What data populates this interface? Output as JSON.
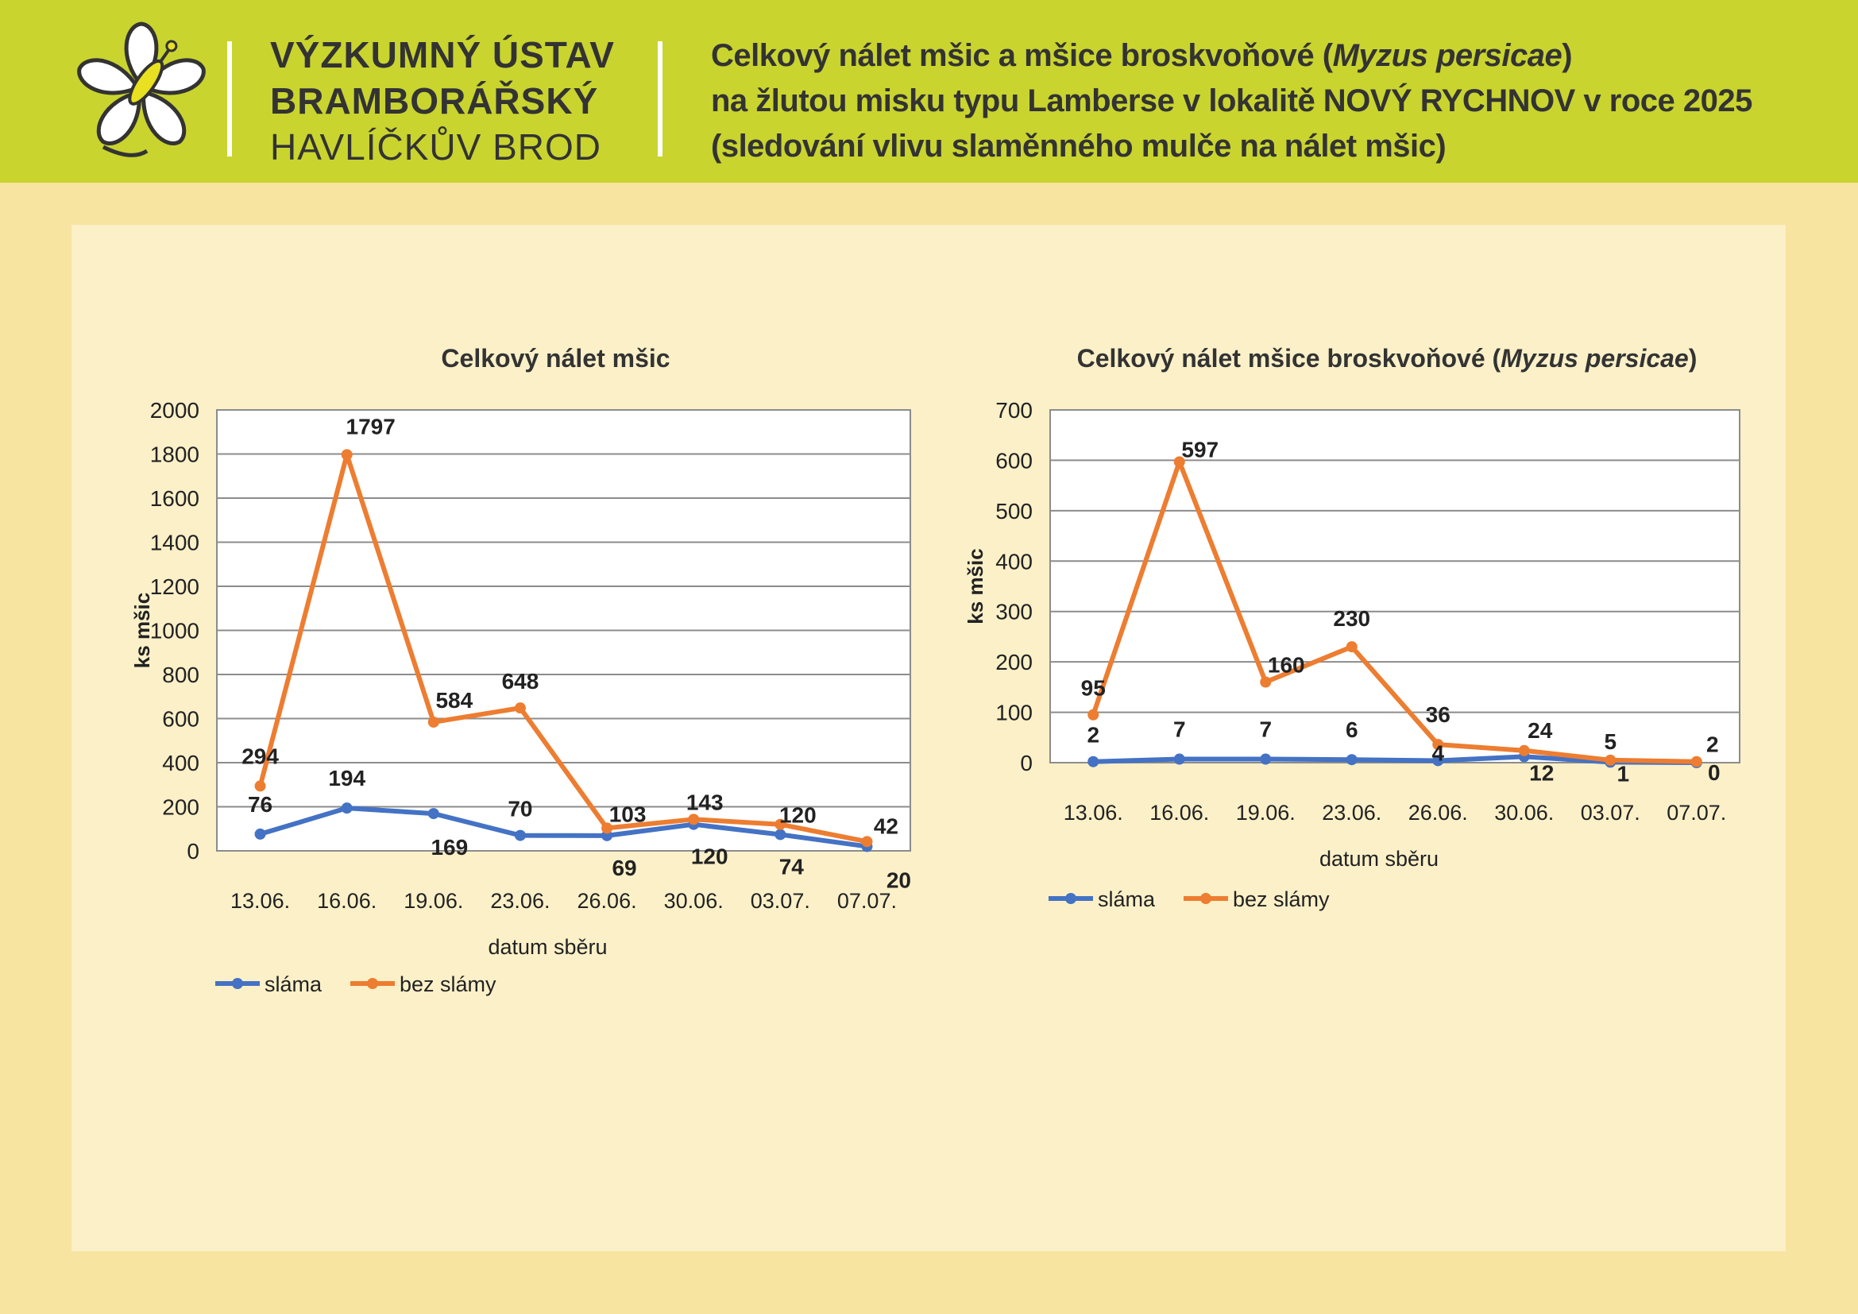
{
  "header": {
    "institute": [
      "VÝZKUMNÝ ÚSTAV",
      "BRAMBORÁŘSKÝ",
      "HAVLÍČKŮV BROD"
    ],
    "title_line1_a": "Celkový nálet mšic a mšice broskvoňové (",
    "title_line1_b": "Myzus persicae",
    "title_line1_c": ")",
    "title_line2": "na žlutou misku typu Lamberse v lokalitě NOVÝ RYCHNOV v roce 2025",
    "title_line3": "(sledování vlivu slaměnného mulče na nálet mšic)"
  },
  "colors": {
    "header_bg": "#c9d42f",
    "page_bg": "#f7e4a0",
    "panel_bg": "#fbf0c8",
    "slama": "#4472c4",
    "bez_slamy": "#ed7d31"
  },
  "chart_data": [
    {
      "type": "line",
      "title": "Celkový nálet mšic",
      "title_italic": "",
      "title_suffix": "",
      "xlabel": "datum sběru",
      "ylabel": "ks mšic",
      "ylim": [
        0,
        2000
      ],
      "yticks": [
        0,
        200,
        400,
        600,
        800,
        1000,
        1200,
        1400,
        1600,
        1800,
        2000
      ],
      "categories": [
        "13.06.",
        "16.06.",
        "19.06.",
        "23.06.",
        "26.06.",
        "30.06.",
        "03.07.",
        "07.07."
      ],
      "series": [
        {
          "name": "sláma",
          "color": "#4472c4",
          "values": [
            76,
            194,
            169,
            70,
            69,
            120,
            74,
            20
          ]
        },
        {
          "name": "bez slámy",
          "color": "#ed7d31",
          "values": [
            294,
            1797,
            584,
            648,
            103,
            143,
            120,
            42
          ]
        }
      ],
      "legend": "bottom-left",
      "grid": true
    },
    {
      "type": "line",
      "title": "Celkový nálet mšice broskvoňové (",
      "title_italic": "Myzus persicae",
      "title_suffix": ")",
      "xlabel": "datum sběru",
      "ylabel": "ks mšic",
      "ylim": [
        0,
        700
      ],
      "yticks": [
        0,
        100,
        200,
        300,
        400,
        500,
        600,
        700
      ],
      "categories": [
        "13.06.",
        "16.06.",
        "19.06.",
        "23.06.",
        "26.06.",
        "30.06.",
        "03.07.",
        "07.07."
      ],
      "series": [
        {
          "name": "sláma",
          "color": "#4472c4",
          "values": [
            2,
            7,
            7,
            6,
            4,
            12,
            1,
            0
          ]
        },
        {
          "name": "bez slámy",
          "color": "#ed7d31",
          "values": [
            95,
            597,
            160,
            230,
            36,
            24,
            5,
            2
          ]
        }
      ],
      "legend": "bottom-left",
      "grid": true
    }
  ]
}
